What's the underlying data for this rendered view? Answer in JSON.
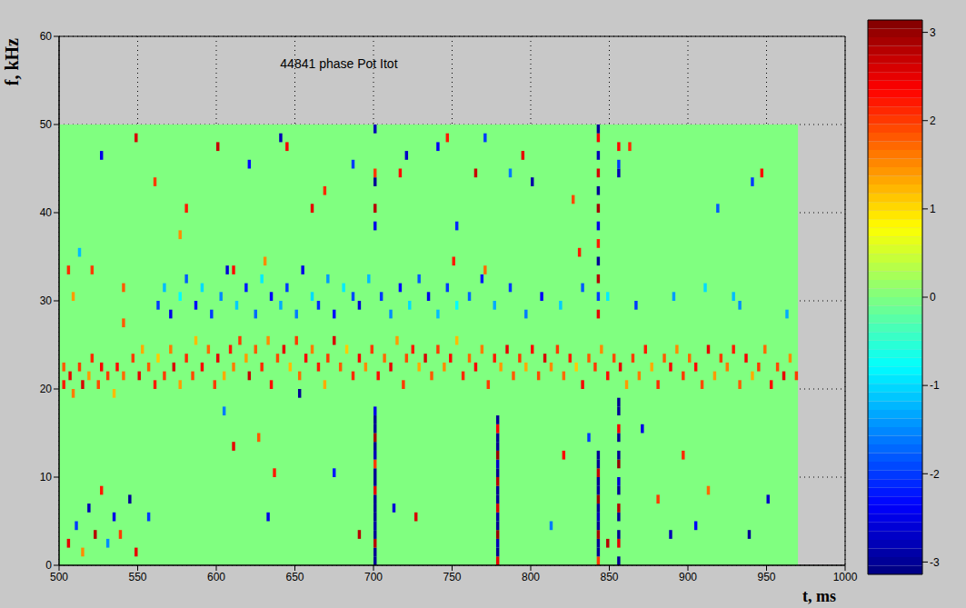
{
  "chart_data": {
    "type": "heatmap",
    "title": "44841 phase Pot Itot",
    "x_label": "t, ms",
    "y_label": "f, kHz",
    "xlim": [
      500,
      1000
    ],
    "ylim": [
      0,
      60
    ],
    "xticks": [
      500,
      550,
      600,
      650,
      700,
      750,
      800,
      850,
      900,
      950,
      1000
    ],
    "yticks": [
      0,
      10,
      20,
      30,
      40,
      50,
      60
    ],
    "grid": true,
    "field": {
      "xlim": [
        500,
        970
      ],
      "ylim": [
        0,
        50
      ],
      "value": 0
    },
    "cell_dt": 2,
    "cell_df": 1,
    "colorbar": {
      "range": [
        -3.14,
        3.14
      ],
      "ticks": [
        -3,
        -2,
        -1,
        0,
        1,
        2,
        3
      ]
    },
    "cells": [
      [
        502,
        20,
        2.2
      ],
      [
        502,
        22,
        1.8
      ],
      [
        506,
        21,
        2.5
      ],
      [
        508,
        19,
        1.6
      ],
      [
        512,
        22,
        2
      ],
      [
        514,
        20,
        2.6
      ],
      [
        518,
        21,
        1.4
      ],
      [
        520,
        23,
        2.1
      ],
      [
        524,
        20,
        1.9
      ],
      [
        526,
        22,
        2.4
      ],
      [
        530,
        21,
        2
      ],
      [
        534,
        19,
        1.2
      ],
      [
        536,
        22,
        2.3
      ],
      [
        540,
        21,
        1.7
      ],
      [
        546,
        23,
        2
      ],
      [
        550,
        21,
        2.5
      ],
      [
        552,
        24,
        1.3
      ],
      [
        556,
        22,
        1.8
      ],
      [
        560,
        20,
        2.2
      ],
      [
        562,
        23,
        1.1
      ],
      [
        566,
        21,
        2
      ],
      [
        570,
        24,
        1.6
      ],
      [
        572,
        22,
        2.6
      ],
      [
        576,
        20,
        1.4
      ],
      [
        580,
        23,
        2.1
      ],
      [
        584,
        21,
        1.9
      ],
      [
        586,
        25,
        1.2
      ],
      [
        590,
        22,
        2.4
      ],
      [
        594,
        24,
        1.7
      ],
      [
        598,
        20,
        2
      ],
      [
        600,
        23,
        2.5
      ],
      [
        604,
        21,
        1.3
      ],
      [
        608,
        24,
        2.2
      ],
      [
        610,
        22,
        1.6
      ],
      [
        614,
        25,
        2
      ],
      [
        618,
        23,
        1.4
      ],
      [
        620,
        21,
        2.7
      ],
      [
        624,
        24,
        1.8
      ],
      [
        628,
        22,
        2.1
      ],
      [
        632,
        25,
        1.5
      ],
      [
        634,
        20,
        2.3
      ],
      [
        638,
        23,
        1.9
      ],
      [
        642,
        24,
        2.5
      ],
      [
        646,
        22,
        1.2
      ],
      [
        650,
        25,
        2
      ],
      [
        652,
        21,
        1.7
      ],
      [
        656,
        23,
        2.4
      ],
      [
        660,
        24,
        1.6
      ],
      [
        664,
        22,
        2.2
      ],
      [
        668,
        20,
        1.3
      ],
      [
        670,
        23,
        2
      ],
      [
        674,
        25,
        2.6
      ],
      [
        678,
        22,
        1.8
      ],
      [
        682,
        24,
        1.1
      ],
      [
        686,
        21,
        2.1
      ],
      [
        690,
        23,
        2.4
      ],
      [
        694,
        22,
        1.5
      ],
      [
        698,
        24,
        2
      ],
      [
        702,
        21,
        2.3
      ],
      [
        706,
        23,
        1.7
      ],
      [
        710,
        22,
        2.5
      ],
      [
        714,
        25,
        1.4
      ],
      [
        718,
        20,
        2
      ],
      [
        720,
        23,
        1.9
      ],
      [
        724,
        24,
        2.2
      ],
      [
        728,
        22,
        1.3
      ],
      [
        732,
        23,
        2.6
      ],
      [
        736,
        21,
        1.8
      ],
      [
        740,
        24,
        2
      ],
      [
        744,
        22,
        1.5
      ],
      [
        748,
        23,
        2.3
      ],
      [
        752,
        25,
        1.2
      ],
      [
        756,
        21,
        2.1
      ],
      [
        760,
        23,
        1.7
      ],
      [
        764,
        22,
        2.4
      ],
      [
        768,
        24,
        1.6
      ],
      [
        772,
        20,
        2
      ],
      [
        776,
        23,
        2.2
      ],
      [
        780,
        22,
        1.4
      ],
      [
        784,
        24,
        2.5
      ],
      [
        788,
        21,
        1.8
      ],
      [
        792,
        23,
        2
      ],
      [
        796,
        22,
        1.3
      ],
      [
        800,
        24,
        2.3
      ],
      [
        804,
        21,
        1.9
      ],
      [
        808,
        23,
        2.6
      ],
      [
        812,
        22,
        1.5
      ],
      [
        816,
        24,
        2
      ],
      [
        820,
        21,
        1.7
      ],
      [
        824,
        23,
        2.2
      ],
      [
        828,
        22,
        1.1
      ],
      [
        832,
        20,
        2.4
      ],
      [
        836,
        23,
        1.8
      ],
      [
        840,
        22,
        2
      ],
      [
        844,
        24,
        1.5
      ],
      [
        848,
        21,
        2.3
      ],
      [
        852,
        23,
        1.9
      ],
      [
        856,
        22,
        2.5
      ],
      [
        860,
        20,
        1.4
      ],
      [
        864,
        23,
        2
      ],
      [
        868,
        21,
        1.6
      ],
      [
        872,
        24,
        2.2
      ],
      [
        876,
        22,
        1.3
      ],
      [
        880,
        20,
        2.1
      ],
      [
        884,
        23,
        1.8
      ],
      [
        888,
        22,
        2.4
      ],
      [
        892,
        24,
        1.5
      ],
      [
        896,
        21,
        2
      ],
      [
        900,
        23,
        1.7
      ],
      [
        904,
        22,
        2.3
      ],
      [
        908,
        20,
        1.9
      ],
      [
        912,
        24,
        2.5
      ],
      [
        916,
        21,
        1.4
      ],
      [
        920,
        23,
        2
      ],
      [
        924,
        22,
        1.6
      ],
      [
        928,
        24,
        2.2
      ],
      [
        932,
        20,
        1.8
      ],
      [
        936,
        23,
        2.4
      ],
      [
        940,
        21,
        1.3
      ],
      [
        944,
        22,
        2
      ],
      [
        948,
        24,
        1.7
      ],
      [
        952,
        20,
        2.3
      ],
      [
        956,
        22,
        1.9
      ],
      [
        960,
        21,
        2.5
      ],
      [
        964,
        23,
        1.5
      ],
      [
        968,
        21,
        2
      ],
      [
        562,
        29,
        -2
      ],
      [
        566,
        31,
        -1.2
      ],
      [
        570,
        28,
        -2.5
      ],
      [
        576,
        30,
        -0.8
      ],
      [
        580,
        32,
        -1.8
      ],
      [
        586,
        29,
        -2.3
      ],
      [
        590,
        31,
        -1
      ],
      [
        596,
        28,
        -2
      ],
      [
        602,
        30,
        -1.5
      ],
      [
        606,
        33,
        -2.6
      ],
      [
        612,
        29,
        -1.1
      ],
      [
        618,
        31,
        -2.2
      ],
      [
        624,
        28,
        -1.7
      ],
      [
        628,
        32,
        -0.9
      ],
      [
        634,
        30,
        -2.4
      ],
      [
        640,
        29,
        -1.3
      ],
      [
        644,
        31,
        -2
      ],
      [
        650,
        28,
        -1.6
      ],
      [
        654,
        33,
        -2.5
      ],
      [
        660,
        30,
        -1
      ],
      [
        664,
        29,
        -2.1
      ],
      [
        670,
        32,
        -1.4
      ],
      [
        674,
        28,
        -2.3
      ],
      [
        680,
        31,
        -0.9
      ],
      [
        686,
        30,
        -1.9
      ],
      [
        690,
        29,
        -2.6
      ],
      [
        696,
        32,
        -1.2
      ],
      [
        704,
        30,
        -2
      ],
      [
        710,
        28,
        -1.5
      ],
      [
        716,
        31,
        -2.3
      ],
      [
        722,
        29,
        -1
      ],
      [
        728,
        32,
        -1.8
      ],
      [
        734,
        30,
        -2.5
      ],
      [
        740,
        28,
        -1.2
      ],
      [
        746,
        31,
        -2
      ],
      [
        752,
        29,
        -0.8
      ],
      [
        760,
        30,
        -1.7
      ],
      [
        768,
        32,
        -2.2
      ],
      [
        776,
        29,
        -1.3
      ],
      [
        786,
        31,
        -2
      ],
      [
        796,
        28,
        -1.6
      ],
      [
        806,
        30,
        -2.4
      ],
      [
        818,
        29,
        -1.1
      ],
      [
        832,
        31,
        -1.8
      ],
      [
        848,
        30,
        -0.9
      ],
      [
        866,
        29,
        -2
      ],
      [
        890,
        30,
        -1.4
      ],
      [
        910,
        31,
        -1
      ],
      [
        932,
        29,
        -1.5
      ],
      [
        520,
        33,
        2
      ],
      [
        540,
        31,
        1.8
      ],
      [
        610,
        33,
        2.3
      ],
      [
        630,
        34,
        1.5
      ],
      [
        750,
        34,
        2.2
      ],
      [
        770,
        33,
        1.7
      ],
      [
        700,
        0,
        -3
      ],
      [
        700,
        1,
        -3
      ],
      [
        700,
        2,
        2.8
      ],
      [
        700,
        3,
        -3
      ],
      [
        700,
        4,
        -2.9
      ],
      [
        700,
        5,
        -3
      ],
      [
        700,
        6,
        -3
      ],
      [
        700,
        7,
        -3
      ],
      [
        700,
        8,
        2.5
      ],
      [
        700,
        9,
        -3
      ],
      [
        700,
        10,
        -3
      ],
      [
        700,
        11,
        2
      ],
      [
        700,
        12,
        -2.8
      ],
      [
        700,
        13,
        -3
      ],
      [
        700,
        14,
        2.9
      ],
      [
        700,
        15,
        -3
      ],
      [
        700,
        16,
        -3
      ],
      [
        700,
        17,
        -2.5
      ],
      [
        700,
        38,
        -2.5
      ],
      [
        700,
        40,
        2.8
      ],
      [
        700,
        43,
        -3
      ],
      [
        700,
        44,
        2
      ],
      [
        700,
        49,
        -2.8
      ],
      [
        778,
        0,
        2.5
      ],
      [
        778,
        1,
        -3
      ],
      [
        778,
        2,
        -2.8
      ],
      [
        778,
        3,
        3
      ],
      [
        778,
        4,
        -3
      ],
      [
        778,
        5,
        -2.9
      ],
      [
        778,
        6,
        2.6
      ],
      [
        778,
        7,
        -3
      ],
      [
        778,
        8,
        -3
      ],
      [
        778,
        9,
        2.8
      ],
      [
        778,
        10,
        -3
      ],
      [
        778,
        11,
        -2.7
      ],
      [
        778,
        12,
        3
      ],
      [
        778,
        13,
        -3
      ],
      [
        778,
        14,
        -3
      ],
      [
        778,
        15,
        2.4
      ],
      [
        778,
        16,
        -3
      ],
      [
        842,
        0,
        2
      ],
      [
        842,
        1,
        -3
      ],
      [
        842,
        2,
        -3
      ],
      [
        842,
        3,
        2.9
      ],
      [
        842,
        4,
        -3
      ],
      [
        842,
        5,
        -2.8
      ],
      [
        842,
        6,
        -3
      ],
      [
        842,
        7,
        3
      ],
      [
        842,
        8,
        -3
      ],
      [
        842,
        9,
        -3
      ],
      [
        842,
        10,
        2.7
      ],
      [
        842,
        11,
        -3
      ],
      [
        842,
        12,
        -3
      ],
      [
        842,
        28,
        2.5
      ],
      [
        842,
        30,
        -2
      ],
      [
        842,
        32,
        2.8
      ],
      [
        842,
        34,
        -3
      ],
      [
        842,
        36,
        2.2
      ],
      [
        842,
        38,
        -2.5
      ],
      [
        842,
        40,
        2.9
      ],
      [
        842,
        42,
        -3
      ],
      [
        842,
        44,
        2.6
      ],
      [
        842,
        46,
        -2.8
      ],
      [
        842,
        48,
        2.4
      ],
      [
        842,
        49,
        -3
      ],
      [
        855,
        0,
        -3
      ],
      [
        855,
        2,
        2.5
      ],
      [
        855,
        3,
        -3
      ],
      [
        855,
        5,
        -3
      ],
      [
        855,
        6,
        2.8
      ],
      [
        855,
        8,
        -3
      ],
      [
        855,
        9,
        -2.6
      ],
      [
        855,
        11,
        3
      ],
      [
        855,
        12,
        -3
      ],
      [
        855,
        14,
        -3
      ],
      [
        855,
        15,
        2.4
      ],
      [
        855,
        17,
        -3
      ],
      [
        855,
        18,
        -3
      ],
      [
        855,
        44,
        -2.8
      ],
      [
        855,
        45,
        -2
      ],
      [
        855,
        47,
        2.3
      ],
      [
        505,
        2,
        2.5
      ],
      [
        510,
        4,
        -2
      ],
      [
        514,
        1,
        1.5
      ],
      [
        518,
        6,
        -2.8
      ],
      [
        522,
        3,
        2.8
      ],
      [
        526,
        8,
        2.2
      ],
      [
        530,
        2,
        -1.5
      ],
      [
        534,
        5,
        -2.5
      ],
      [
        538,
        3,
        2
      ],
      [
        544,
        7,
        -3
      ],
      [
        548,
        1,
        2.5
      ],
      [
        556,
        5,
        -2
      ],
      [
        505,
        33,
        2.1
      ],
      [
        508,
        30,
        1.4
      ],
      [
        512,
        35,
        -1.2
      ],
      [
        526,
        46,
        -2.5
      ],
      [
        540,
        27,
        1.8
      ],
      [
        548,
        48,
        2.6
      ],
      [
        560,
        43,
        2
      ],
      [
        576,
        37,
        1.5
      ],
      [
        580,
        40,
        2.2
      ],
      [
        600,
        47,
        2.7
      ],
      [
        604,
        17,
        -1.6
      ],
      [
        610,
        13,
        2.5
      ],
      [
        620,
        45,
        -2.3
      ],
      [
        626,
        14,
        1.8
      ],
      [
        632,
        5,
        -2.5
      ],
      [
        636,
        10,
        2.2
      ],
      [
        640,
        48,
        -2.8
      ],
      [
        644,
        47,
        2.4
      ],
      [
        652,
        19,
        -3
      ],
      [
        660,
        40,
        2.5
      ],
      [
        668,
        42,
        2.1
      ],
      [
        674,
        10,
        -2.2
      ],
      [
        686,
        45,
        -2
      ],
      [
        690,
        3,
        2.8
      ],
      [
        712,
        6,
        -2.6
      ],
      [
        716,
        44,
        2.3
      ],
      [
        720,
        46,
        -2.7
      ],
      [
        726,
        5,
        2.6
      ],
      [
        740,
        47,
        -2.4
      ],
      [
        746,
        48,
        2.2
      ],
      [
        752,
        38,
        -2.1
      ],
      [
        764,
        44,
        2.7
      ],
      [
        770,
        48,
        -2
      ],
      [
        786,
        44,
        -1.6
      ],
      [
        794,
        46,
        2.5
      ],
      [
        800,
        43,
        -2.9
      ],
      [
        812,
        4,
        -1.6
      ],
      [
        820,
        12,
        2.3
      ],
      [
        826,
        41,
        1.9
      ],
      [
        830,
        35,
        2.2
      ],
      [
        836,
        14,
        -2
      ],
      [
        848,
        2,
        2.8
      ],
      [
        862,
        47,
        2.1
      ],
      [
        870,
        15,
        -2.5
      ],
      [
        880,
        7,
        2
      ],
      [
        888,
        3,
        -2.8
      ],
      [
        896,
        12,
        2.1
      ],
      [
        904,
        4,
        -2.4
      ],
      [
        912,
        8,
        1.7
      ],
      [
        918,
        40,
        -1.8
      ],
      [
        928,
        30,
        -1.2
      ],
      [
        940,
        43,
        -2
      ],
      [
        946,
        44,
        2.3
      ],
      [
        950,
        7,
        -2.7
      ],
      [
        938,
        3,
        -3
      ],
      [
        962,
        28,
        -1.3
      ]
    ]
  }
}
